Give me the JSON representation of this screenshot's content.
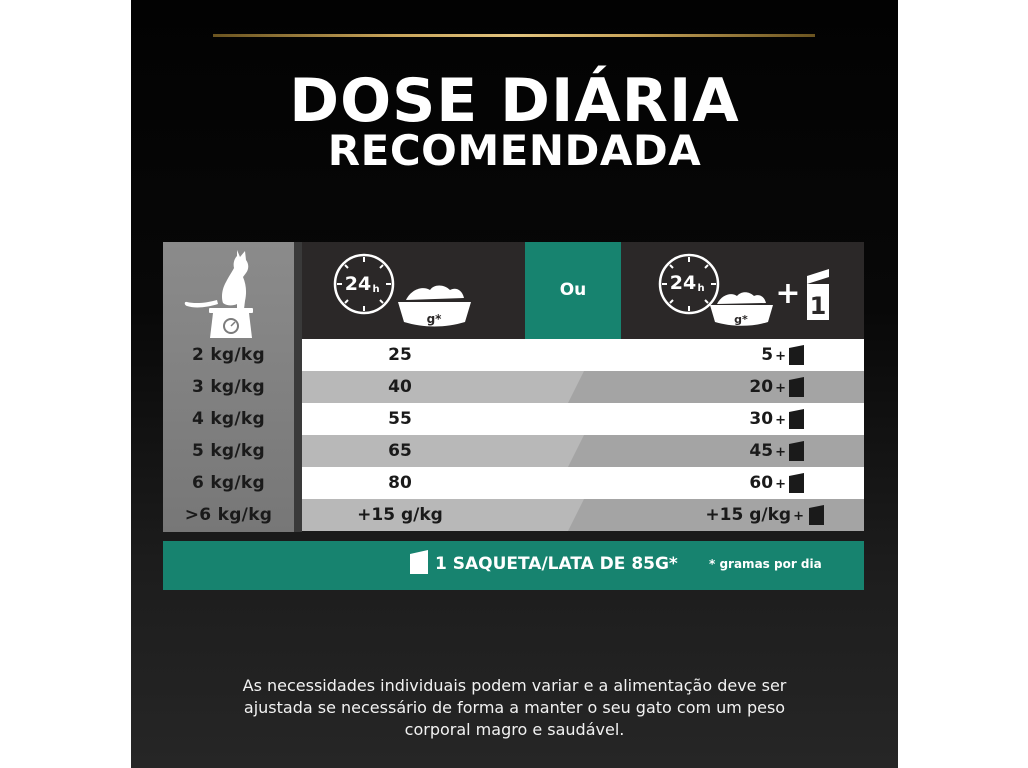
{
  "title": {
    "line1": "DOSE DIÁRIA",
    "line2": "RECOMENDADA"
  },
  "header": {
    "left_clock_label": "24",
    "left_clock_unit": "h",
    "left_bowl_label": "g*",
    "or_label": "Ou",
    "right_clock_label": "24",
    "right_clock_unit": "h",
    "right_bowl_label": "g*",
    "plus_sign": "+",
    "pouch_count": "1"
  },
  "rows": [
    {
      "weight": "2 kg/kg",
      "dry": "25",
      "wet": "5",
      "plus": "+"
    },
    {
      "weight": "3 kg/kg",
      "dry": "40",
      "wet": "20",
      "plus": "+"
    },
    {
      "weight": "4 kg/kg",
      "dry": "55",
      "wet": "30",
      "plus": "+"
    },
    {
      "weight": "5 kg/kg",
      "dry": "65",
      "wet": "45",
      "plus": "+"
    },
    {
      "weight": "6 kg/kg",
      "dry": "80",
      "wet": "60",
      "plus": "+"
    },
    {
      "weight": ">6  kg/kg",
      "dry": "+15 g/kg",
      "wet": "+15 g/kg",
      "plus": "+"
    }
  ],
  "footer": {
    "pouch_label": "1 SAQUETA/LATA DE 85G*",
    "note": "* gramas por dia"
  },
  "disclaimer": {
    "line1": "As necessidades individuais podem variar e a alimentação deve ser",
    "line2": "ajustada se necessário de forma a manter o seu gato com um peso",
    "line3": "corporal magro e saudável."
  },
  "colors": {
    "accent_green": "#17836f",
    "gold": "#c8a45a",
    "header_dark": "#2b2828"
  },
  "icons": [
    "cat-on-scale-icon",
    "clock-24h-icon",
    "food-bowl-icon",
    "pouch-icon"
  ]
}
